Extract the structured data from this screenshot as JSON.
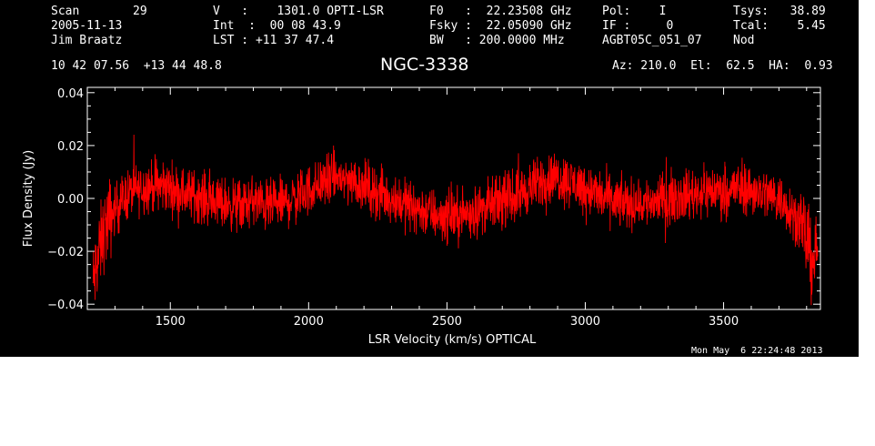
{
  "header": {
    "scan_label": "Scan",
    "scan_value": "29",
    "date": "2005-11-13",
    "observer": "Jim Braatz",
    "coords": "10 42 07.56  +13 44 48.8",
    "v_line": "V   :    1301.0 OPTI-LSR",
    "int_line": "Int  :  00 08 43.9",
    "lst_line": "LST : +11 37 47.4",
    "f0_line": "F0   :  22.23508 GHz",
    "fsky_line": "Fsky :  22.05090 GHz",
    "bw_line": "BW   : 200.0000 MHz",
    "pol_line": "Pol:    I",
    "if_line": "IF :     0",
    "project": "AGBT05C_051_07",
    "tsys_line": "Tsys:   38.89",
    "tcal_line": "Tcal:    5.45",
    "mode": "Nod",
    "source": "NGC-3338",
    "azelha": "Az: 210.0  El:  62.5  HA:  0.93",
    "timestamp": "Mon May  6 22:24:48 2013"
  },
  "colors": {
    "background": "#000000",
    "axes": "#ffffff",
    "spectrum": "#ff0000"
  },
  "chart_data": {
    "type": "line",
    "xlabel": "LSR Velocity (km/s) OPTICAL",
    "ylabel": "Flux Density (Jy)",
    "xlim": [
      1200,
      3850
    ],
    "ylim": [
      -0.042,
      0.042
    ],
    "x_ticks": [
      1500,
      2000,
      2500,
      3000,
      3500
    ],
    "x_tick_labels": [
      "1500",
      "2000",
      "2500",
      "3000",
      "3500"
    ],
    "y_ticks": [
      -0.04,
      -0.02,
      0.0,
      0.02,
      0.04
    ],
    "y_tick_labels": [
      "−0.04",
      "−0.02",
      "0.00",
      "0.02",
      "0.04"
    ],
    "grid": false,
    "series": [
      {
        "x": [
          1220,
          1240,
          1260,
          1300,
          1350,
          1400,
          1450,
          1500,
          1550,
          1600,
          1650,
          1700,
          1750,
          1800,
          1850,
          1900,
          1950,
          2000,
          2050,
          2100,
          2150,
          2200,
          2250,
          2300,
          2350,
          2400,
          2450,
          2500,
          2550,
          2600,
          2650,
          2700,
          2750,
          2800,
          2850,
          2900,
          2950,
          3000,
          3050,
          3100,
          3150,
          3200,
          3250,
          3300,
          3350,
          3400,
          3450,
          3500,
          3550,
          3600,
          3650,
          3700,
          3750,
          3780,
          3800,
          3820,
          3840
        ],
        "y": [
          -0.033,
          -0.022,
          -0.012,
          -0.004,
          0.002,
          0.004,
          0.005,
          0.004,
          0.002,
          0.001,
          -0.001,
          -0.002,
          -0.003,
          -0.001,
          -0.003,
          -0.002,
          0.0,
          0.003,
          0.006,
          0.008,
          0.007,
          0.005,
          0.002,
          0.0,
          -0.002,
          -0.004,
          -0.006,
          -0.007,
          -0.006,
          -0.005,
          -0.003,
          -0.001,
          0.001,
          0.004,
          0.007,
          0.008,
          0.006,
          0.004,
          0.001,
          -0.001,
          -0.002,
          -0.002,
          -0.001,
          0.0,
          0.001,
          0.002,
          0.003,
          0.003,
          0.004,
          0.003,
          0.002,
          0.0,
          -0.005,
          -0.01,
          -0.016,
          -0.024,
          -0.018
        ]
      }
    ]
  }
}
